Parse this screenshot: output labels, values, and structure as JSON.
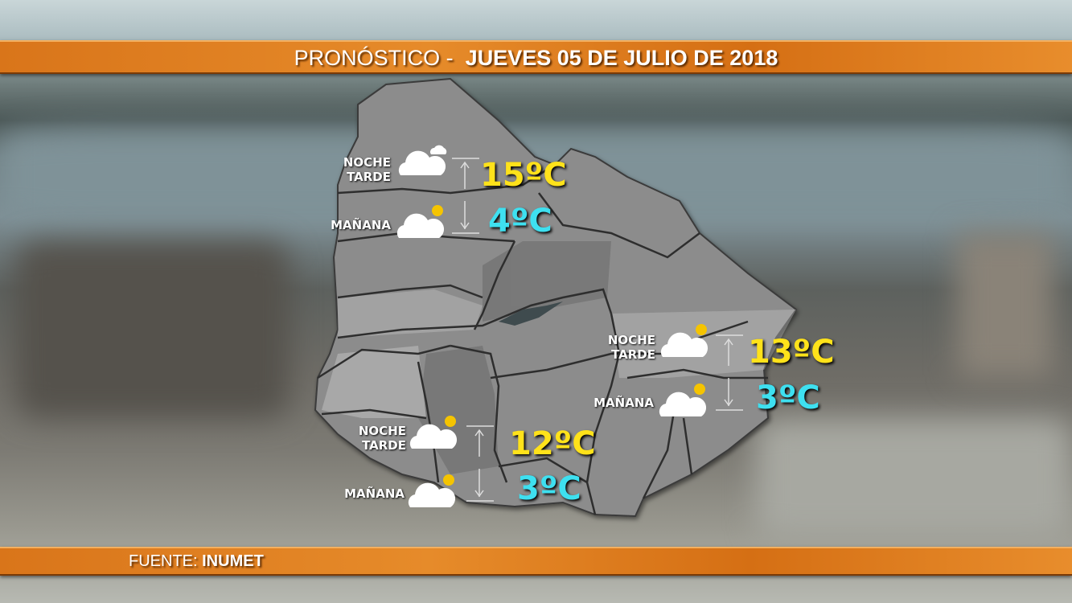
{
  "header": {
    "prefix": "PRONÓSTICO -",
    "date": "JUEVES 05 DE JULIO DE 2018"
  },
  "footer": {
    "label": "FUENTE:",
    "source": "INUMET"
  },
  "colors": {
    "bar": "#e68b2a",
    "max_temp": "#ffe21a",
    "min_temp": "#3ee0f0",
    "map": "#8e8e8e"
  },
  "forecasts": [
    {
      "region": "north",
      "evening_label": "NOCHE",
      "afternoon_label": "TARDE",
      "morning_label": "MAÑANA",
      "evening_icon": "cloudy-icon",
      "morning_icon": "partly-cloudy-icon",
      "max": "15ºC",
      "min": "4ºC"
    },
    {
      "region": "east",
      "evening_label": "NOCHE",
      "afternoon_label": "TARDE",
      "morning_label": "MAÑANA",
      "evening_icon": "partly-cloudy-icon",
      "morning_icon": "partly-cloudy-icon",
      "max": "13ºC",
      "min": "3ºC"
    },
    {
      "region": "south",
      "evening_label": "NOCHE",
      "afternoon_label": "TARDE",
      "morning_label": "MAÑANA",
      "evening_icon": "partly-cloudy-icon",
      "morning_icon": "partly-cloudy-icon",
      "max": "12ºC",
      "min": "3ºC"
    }
  ]
}
